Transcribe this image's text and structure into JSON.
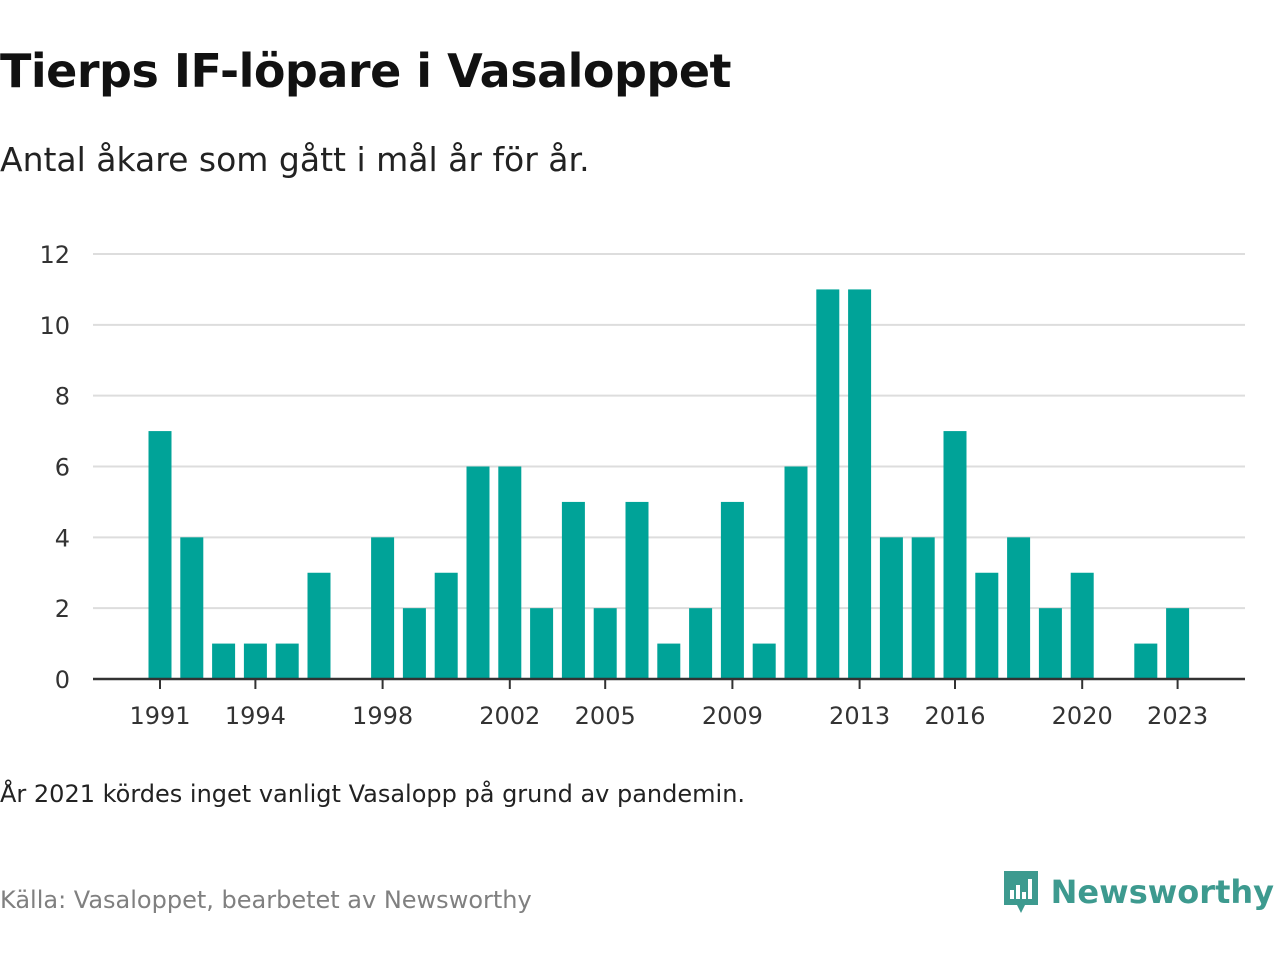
{
  "header": {
    "title": "Tierps IF-löpare i Vasaloppet",
    "subtitle": "Antal åkare som gått i mål år för år."
  },
  "footer": {
    "note": "År 2021 kördes inget vanligt Vasalopp på grund av pandemin.",
    "source": "Källa: Vasaloppet, bearbetet av Newsworthy",
    "brand": "Newsworthy",
    "brand_icon": "bar-chart-icon"
  },
  "colors": {
    "bar": "#00a398",
    "grid": "#dddddd",
    "axis": "#333333",
    "brand": "#3d9a8f"
  },
  "chart_data": {
    "type": "bar",
    "title": "Tierps IF-löpare i Vasaloppet",
    "subtitle": "Antal åkare som gått i mål år för år.",
    "xlabel": "",
    "ylabel": "",
    "ylim": [
      0,
      12
    ],
    "yticks": [
      0,
      2,
      4,
      6,
      8,
      10,
      12
    ],
    "xticks": [
      1991,
      1994,
      1998,
      2002,
      2005,
      2009,
      2013,
      2016,
      2020,
      2023
    ],
    "grid": true,
    "categories": [
      1991,
      1992,
      1993,
      1994,
      1995,
      1996,
      1997,
      1998,
      1999,
      2000,
      2001,
      2002,
      2003,
      2004,
      2005,
      2006,
      2007,
      2008,
      2009,
      2010,
      2011,
      2012,
      2013,
      2014,
      2015,
      2016,
      2017,
      2018,
      2019,
      2020,
      2021,
      2022,
      2023
    ],
    "values": [
      7,
      4,
      1,
      1,
      1,
      3,
      0,
      4,
      2,
      3,
      6,
      6,
      2,
      5,
      2,
      5,
      1,
      2,
      5,
      1,
      6,
      11,
      11,
      4,
      4,
      7,
      3,
      4,
      2,
      3,
      0,
      1,
      2
    ]
  }
}
